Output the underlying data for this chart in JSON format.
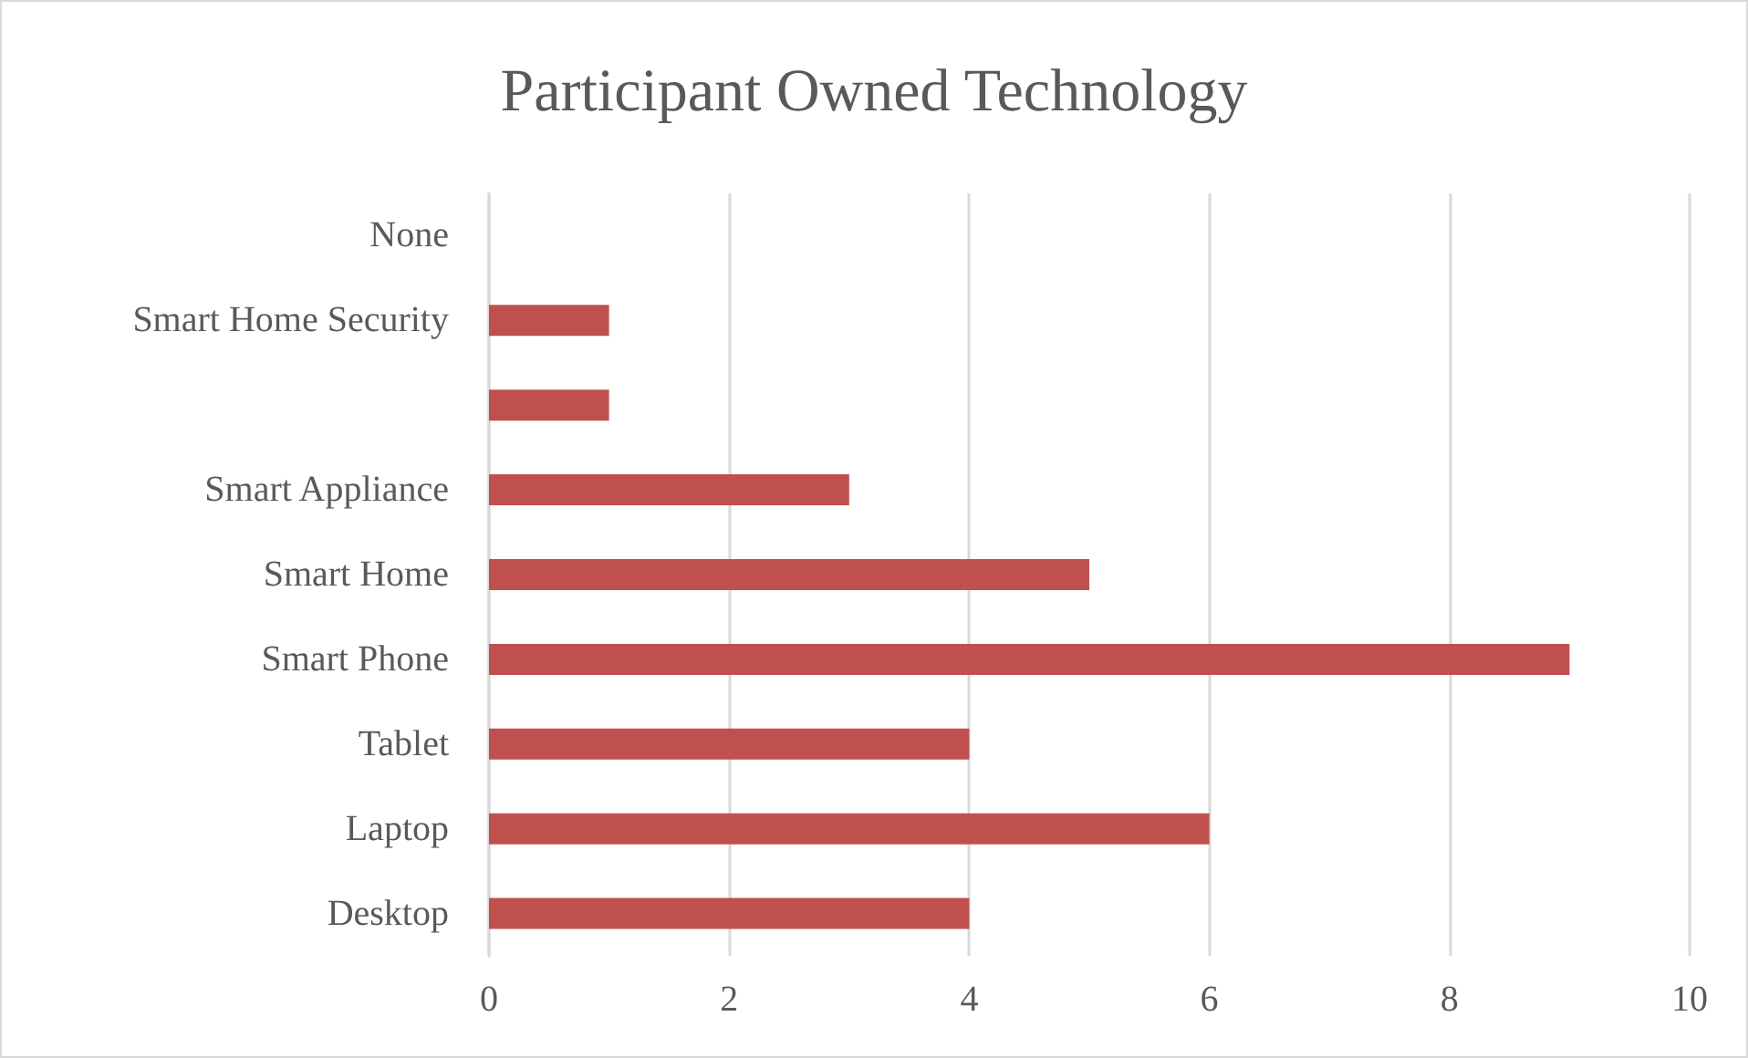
{
  "chart_data": {
    "type": "bar",
    "orientation": "horizontal",
    "title": "Participant Owned Technology",
    "categories": [
      "None",
      "Smart Home Security",
      null,
      "Smart Appliance",
      "Smart Home",
      "Smart Phone",
      "Tablet",
      "Laptop",
      "Desktop"
    ],
    "values": [
      0,
      1,
      1,
      3,
      5,
      9,
      4,
      6,
      4
    ],
    "color": "#c0504d",
    "xlim": [
      0,
      10
    ],
    "xticks": [
      0,
      2,
      4,
      6,
      8,
      10
    ],
    "grid": "x"
  }
}
